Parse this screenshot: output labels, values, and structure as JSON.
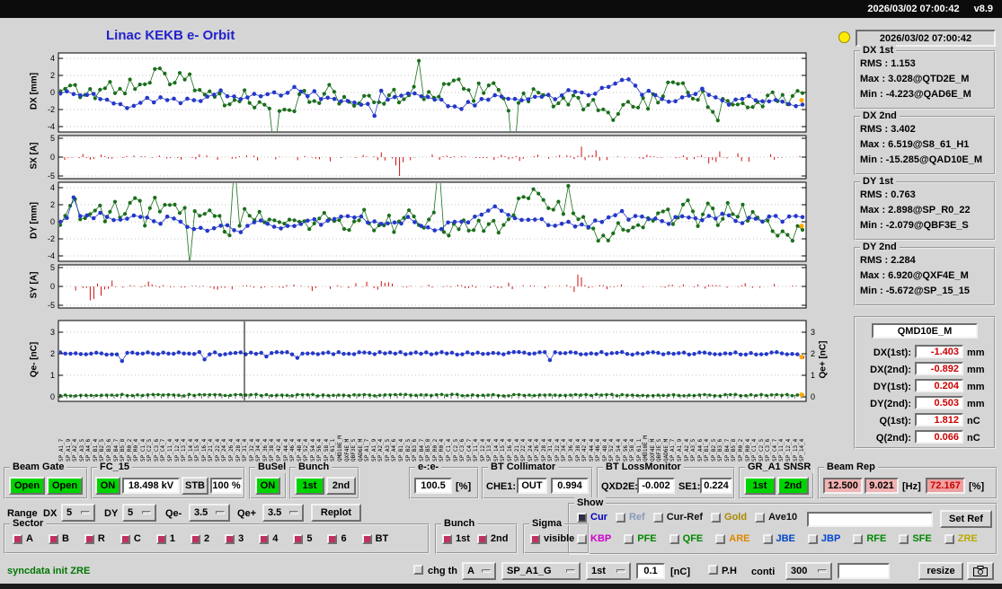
{
  "header": {
    "datetime": "2026/03/02 07:00:42",
    "version": "v8.9"
  },
  "page_title": "Linac KEKB e- Orbit",
  "clock": "2026/03/02 07:00:42",
  "colors": {
    "title_blue": "#2222cc",
    "plot_green": "#1a6e1a",
    "plot_blue": "#2438c8",
    "signal_red": "#cc1111",
    "orange_marker": "#ffaa00",
    "green_on": "#00d400",
    "pink_value": "#f0b2b2",
    "pink_strong": "#eea0a0",
    "value_red": "#cc0000",
    "lamp_yellow": "#ffec00",
    "sector_box": "#c03060",
    "checked_dark": "#2e2e44",
    "status_green": "#007700"
  },
  "plots": {
    "dx": {
      "ylabel": "DX [mm]",
      "ticks": [
        "4",
        "2",
        "0",
        "-2",
        "-4"
      ]
    },
    "sx": {
      "ylabel": "SX [A]",
      "ticks": [
        "5",
        "0",
        "-5"
      ]
    },
    "dy": {
      "ylabel": "DY [mm]",
      "ticks": [
        "4",
        "2",
        "0",
        "-2",
        "-4"
      ]
    },
    "sy": {
      "ylabel": "SY [A]",
      "ticks": [
        "5",
        "0",
        "-5"
      ]
    },
    "q": {
      "ylabel": "Qe- [nC]",
      "ylabel_right": "Qe+ [nC]",
      "ticks": [
        "3",
        "2",
        "1",
        "0"
      ],
      "ticks_right": [
        "3",
        "2",
        "1",
        "0"
      ]
    }
  },
  "bpm_names": [
    "SP_A1_7",
    "SP_A1_9",
    "SP_A2_4",
    "SP_A3_5",
    "SP_A4_6",
    "SP_B1_4",
    "SP_B2_5",
    "SP_B3_6",
    "SP_B4_7",
    "SP_B5_8",
    "SP_R0_2",
    "SP_R0_4",
    "SP_C1_4",
    "SP_C2_5",
    "SP_C3_6",
    "SP_C4_7",
    "SP_11_4",
    "SP_12_4",
    "SP_13_4",
    "SP_14_4",
    "SP_15_4",
    "SP_16_4",
    "SP_21_4",
    "SP_22_4",
    "SP_24_4",
    "SP_26_4",
    "SP_28_4",
    "SP_31_4",
    "SP_32_4",
    "SP_34_4",
    "SP_36_4",
    "SP_38_4",
    "SP_42_4",
    "SP_44_4",
    "SP_46_4",
    "SP_48_4",
    "SP_52_4",
    "SP_54_4",
    "SP_56_4",
    "SP_58_4",
    "SP_61_1",
    "QMD10E_M",
    "QXF4E_M",
    "QBF3E_S",
    "QAD6E_M"
  ],
  "stats": [
    {
      "title": "DX 1st",
      "lines": [
        "RMS : 1.153",
        "Max : 3.028@QTD2E_M",
        "Min : -4.223@QAD6E_M"
      ]
    },
    {
      "title": "DX 2nd",
      "lines": [
        "RMS : 3.402",
        "Max : 6.519@S8_61_H1",
        "Min : -15.285@QAD10E_M"
      ]
    },
    {
      "title": "DY 1st",
      "lines": [
        "RMS : 0.763",
        "Max : 2.898@SP_R0_22",
        "Min : -2.079@QBF3E_S"
      ]
    },
    {
      "title": "DY 2nd",
      "lines": [
        "RMS : 2.284",
        "Max : 6.920@QXF4E_M",
        "Min : -5.672@SP_15_15"
      ]
    }
  ],
  "monitor": {
    "title": "QMD10E_M",
    "rows": [
      {
        "label": "DX(1st):",
        "value": "-1.403",
        "unit": "mm"
      },
      {
        "label": "DX(2nd):",
        "value": "-0.892",
        "unit": "mm"
      },
      {
        "label": "DY(1st):",
        "value": "0.204",
        "unit": "mm"
      },
      {
        "label": "DY(2nd):",
        "value": "0.503",
        "unit": "mm"
      },
      {
        "label": "Q(1st):",
        "value": "1.812",
        "unit": "nC"
      },
      {
        "label": "Q(2nd):",
        "value": "0.066",
        "unit": "nC"
      }
    ]
  },
  "controls": {
    "beam_gate": {
      "title": "Beam Gate",
      "open1": "Open",
      "open2": "Open"
    },
    "fc15": {
      "title": "FC_15",
      "on": "ON",
      "kv": "18.498 kV",
      "stb": "STB",
      "pct": "100 %"
    },
    "busel": {
      "title": "BuSel",
      "on": "ON"
    },
    "bunch": {
      "title": "Bunch",
      "b1": "1st",
      "b2": "2nd"
    },
    "ee": {
      "title": "e-:e-",
      "value": "100.5",
      "unit": "[%]"
    },
    "btcol": {
      "title": "BT Collimator",
      "che1_label": "CHE1:",
      "che1": "OUT",
      "extra": "0.994"
    },
    "btloss": {
      "title": "BT LossMonitor",
      "l1": "QXD2E:",
      "v1": "-0.002",
      "l2": "SE1:",
      "v2": "0.224"
    },
    "gra1": {
      "title": "GR_A1 SNSR",
      "b1": "1st",
      "b2": "2nd"
    },
    "beamrep": {
      "title": "Beam Rep",
      "v1": "12.500",
      "v2": "9.021",
      "hz": "[Hz]",
      "v3": "72.167",
      "pct": "[%]"
    }
  },
  "range": {
    "label": "Range",
    "dx_label": "DX",
    "dx": "5",
    "dy_label": "DY",
    "dy": "5",
    "qm_label": "Qe-",
    "qm": "3.5",
    "qp_label": "Qe+",
    "qp": "3.5",
    "replot": "Replot"
  },
  "sector": {
    "title": "Sector",
    "items": [
      "A",
      "B",
      "R",
      "C",
      "1",
      "2",
      "3",
      "4",
      "5",
      "6",
      "BT"
    ]
  },
  "bunch2": {
    "title": "Bunch",
    "items": [
      "1st",
      "2nd"
    ]
  },
  "sigma": {
    "title": "Sigma",
    "item": "visible"
  },
  "show": {
    "title": "Show",
    "row1": [
      {
        "label": "Cur",
        "color": "#0000bb",
        "checked": true
      },
      {
        "label": "Ref",
        "color": "#8899bb"
      },
      {
        "label": "Cur-Ref",
        "color": "#111111"
      },
      {
        "label": "Gold",
        "color": "#aa8800"
      },
      {
        "label": "Ave10",
        "color": "#111111"
      }
    ],
    "set_ref": "Set Ref",
    "row2": [
      {
        "label": "KBP",
        "color": "#cc00cc"
      },
      {
        "label": "PFE",
        "color": "#008800"
      },
      {
        "label": "QFE",
        "color": "#008800"
      },
      {
        "label": "ARE",
        "color": "#dd8800"
      },
      {
        "label": "JBE",
        "color": "#0044cc"
      },
      {
        "label": "JBP",
        "color": "#0044cc"
      },
      {
        "label": "RFE",
        "color": "#008800"
      },
      {
        "label": "SFE",
        "color": "#008800"
      },
      {
        "label": "ZRE",
        "color": "#bbaa00"
      }
    ]
  },
  "statusbar": {
    "message": "syncdata init ZRE",
    "chg_th": "chg th",
    "sel_a": "A",
    "sel_sp": "SP_A1_G",
    "sel_1st": "1st",
    "th_val": "0.1",
    "th_unit": "[nC]",
    "ph": "P.H",
    "conti": "conti",
    "sel_300": "300",
    "resize": "resize"
  }
}
